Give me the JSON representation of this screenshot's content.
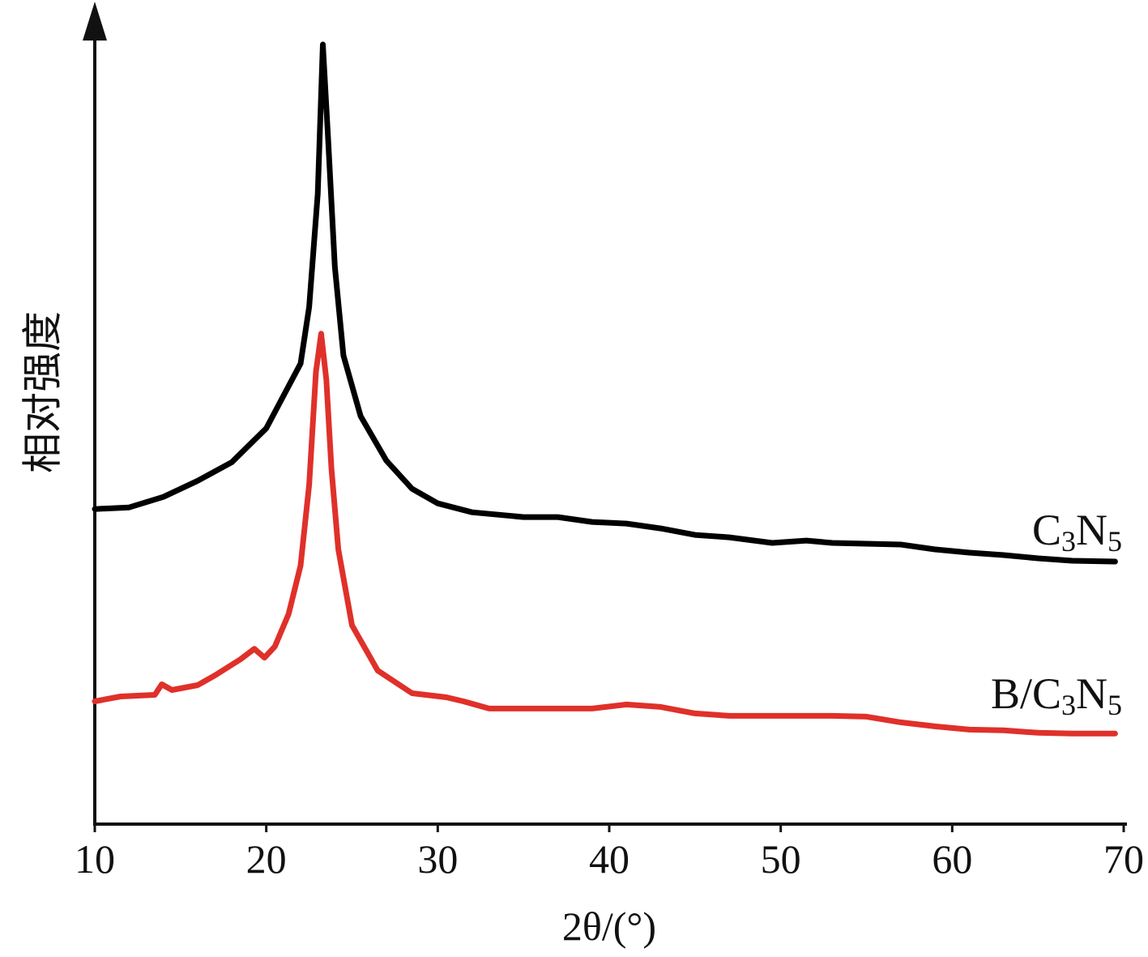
{
  "chart_data": {
    "type": "line",
    "title": "",
    "xlabel": "2θ/(°)",
    "ylabel": "相对强度",
    "xlim": [
      10,
      70
    ],
    "ylim": [
      0,
      100
    ],
    "x_ticks": [
      "10",
      "20",
      "30",
      "40",
      "50",
      "60",
      "70"
    ],
    "y_ticks": [],
    "grid": false,
    "legend": "labels at right end of each series",
    "series": [
      {
        "name": "C3N5",
        "label_parts": [
          "C",
          "3",
          "N",
          "5"
        ],
        "color": "#000000",
        "points": [
          [
            10,
            39
          ],
          [
            12,
            39.2
          ],
          [
            14,
            40.5
          ],
          [
            16,
            42.5
          ],
          [
            18,
            44.8
          ],
          [
            20,
            49
          ],
          [
            21,
            53
          ],
          [
            22,
            57
          ],
          [
            22.5,
            64
          ],
          [
            23,
            78
          ],
          [
            23.3,
            96.5
          ],
          [
            23.6,
            85
          ],
          [
            24,
            69
          ],
          [
            24.5,
            58
          ],
          [
            25.5,
            50.5
          ],
          [
            27,
            45
          ],
          [
            28.5,
            41.5
          ],
          [
            30,
            39.7
          ],
          [
            32,
            38.6
          ],
          [
            35,
            38
          ],
          [
            37,
            38
          ],
          [
            39,
            37.4
          ],
          [
            41,
            37.2
          ],
          [
            43,
            36.6
          ],
          [
            45,
            35.8
          ],
          [
            47,
            35.5
          ],
          [
            49.5,
            34.8
          ],
          [
            51.5,
            35.1
          ],
          [
            53,
            34.8
          ],
          [
            55,
            34.7
          ],
          [
            57,
            34.6
          ],
          [
            59,
            34
          ],
          [
            61,
            33.6
          ],
          [
            63,
            33.3
          ],
          [
            65,
            32.9
          ],
          [
            67,
            32.6
          ],
          [
            69.5,
            32.5
          ]
        ]
      },
      {
        "name": "B/C3N5",
        "label_parts": [
          "B/C",
          "3",
          "N",
          "5"
        ],
        "color": "#e0302a",
        "points": [
          [
            10,
            15.2
          ],
          [
            11.5,
            15.8
          ],
          [
            13.5,
            16
          ],
          [
            13.9,
            17.3
          ],
          [
            14.5,
            16.6
          ],
          [
            16,
            17.2
          ],
          [
            17,
            18.4
          ],
          [
            18.5,
            20.4
          ],
          [
            19.3,
            21.7
          ],
          [
            19.9,
            20.6
          ],
          [
            20.5,
            22
          ],
          [
            21.3,
            26
          ],
          [
            22,
            32
          ],
          [
            22.5,
            42
          ],
          [
            22.9,
            56
          ],
          [
            23.2,
            60.7
          ],
          [
            23.5,
            55
          ],
          [
            23.8,
            44
          ],
          [
            24.2,
            34
          ],
          [
            25,
            24.6
          ],
          [
            26.5,
            19
          ],
          [
            28.5,
            16.2
          ],
          [
            30.5,
            15.7
          ],
          [
            31.5,
            15.2
          ],
          [
            33,
            14.3
          ],
          [
            36,
            14.3
          ],
          [
            39,
            14.3
          ],
          [
            41,
            14.8
          ],
          [
            43,
            14.5
          ],
          [
            45,
            13.7
          ],
          [
            47,
            13.4
          ],
          [
            50,
            13.4
          ],
          [
            53,
            13.4
          ],
          [
            55,
            13.3
          ],
          [
            57,
            12.6
          ],
          [
            59,
            12.1
          ],
          [
            61,
            11.7
          ],
          [
            63,
            11.6
          ],
          [
            65,
            11.3
          ],
          [
            67,
            11.2
          ],
          [
            69.5,
            11.2
          ]
        ]
      }
    ]
  }
}
